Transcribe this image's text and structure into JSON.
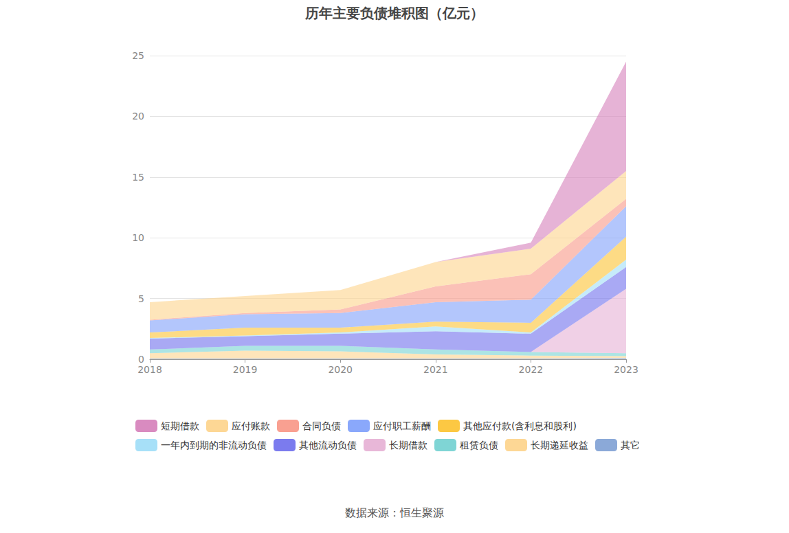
{
  "chart_data": {
    "type": "area",
    "title": "历年主要负债堆积图（亿元）",
    "source": "数据来源：恒生聚源",
    "categories": [
      "2018",
      "2019",
      "2020",
      "2021",
      "2022",
      "2023"
    ],
    "ylim": [
      0,
      25
    ],
    "yticks": [
      0,
      5,
      10,
      15,
      20,
      25
    ],
    "grid": true,
    "stacked": true,
    "legend": "bottom",
    "series": [
      {
        "name": "短期借款",
        "color": "#d98bc0",
        "values": [
          0,
          0,
          0,
          0,
          0.5,
          9.0
        ]
      },
      {
        "name": "应付账款",
        "color": "#fdd795",
        "values": [
          1.45,
          1.4,
          1.6,
          2.0,
          2.1,
          2.3
        ]
      },
      {
        "name": "合同负债",
        "color": "#f9a091",
        "values": [
          0.05,
          0.1,
          0.3,
          1.3,
          2.1,
          0.6
        ]
      },
      {
        "name": "应付职工薪酬",
        "color": "#8aa8fb",
        "values": [
          1.0,
          1.1,
          1.2,
          1.6,
          1.9,
          2.5
        ]
      },
      {
        "name": "其他应付款(含利息和股利)",
        "color": "#fcc843",
        "values": [
          0.45,
          0.65,
          0.4,
          0.4,
          0.8,
          1.9
        ]
      },
      {
        "name": "一年内到期的非流动负债",
        "color": "#a7e0f8",
        "values": [
          0.05,
          0.05,
          0.1,
          0.4,
          0.1,
          0.6
        ]
      },
      {
        "name": "其他流动负债",
        "color": "#7b7bee",
        "values": [
          0.9,
          0.8,
          1.0,
          1.5,
          1.5,
          1.8
        ]
      },
      {
        "name": "长期借款",
        "color": "#e8b7d8",
        "values": [
          0,
          0,
          0,
          0,
          0,
          5.3
        ]
      },
      {
        "name": "租赁负债",
        "color": "#7fd5d5",
        "values": [
          0.3,
          0.4,
          0.45,
          0.4,
          0.3,
          0.25
        ]
      },
      {
        "name": "长期递延收益",
        "color": "#fdd795",
        "values": [
          0.45,
          0.65,
          0.6,
          0.35,
          0.25,
          0.15
        ]
      },
      {
        "name": "其它",
        "color": "#8ba9d8",
        "values": [
          0.05,
          0.05,
          0.05,
          0.05,
          0.05,
          0.1
        ]
      }
    ]
  }
}
